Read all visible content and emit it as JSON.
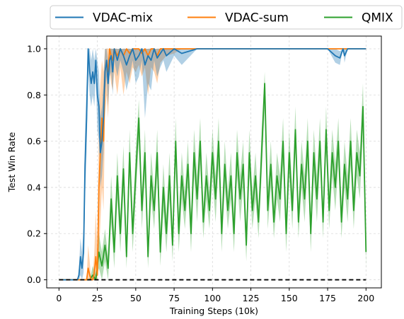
{
  "chart_data": {
    "type": "line",
    "xlabel": "Training Steps (10k)",
    "ylabel": "Test Win Rate",
    "xlim": [
      -8,
      210
    ],
    "ylim": [
      -0.035,
      1.055
    ],
    "xticks": [
      0,
      25,
      50,
      75,
      100,
      125,
      150,
      175,
      200
    ],
    "xtick_labels": [
      "0",
      "25",
      "50",
      "75",
      "100",
      "125",
      "150",
      "175",
      "200"
    ],
    "yticks": [
      0.0,
      0.2,
      0.4,
      0.6,
      0.8,
      1.0
    ],
    "ytick_labels": [
      "0.0",
      "0.2",
      "0.4",
      "0.6",
      "0.8",
      "1.0"
    ],
    "grid": true,
    "legend_position": "top",
    "baseline": {
      "y": 0.0,
      "style": "dashed",
      "color": "#000000"
    },
    "series": [
      {
        "name": "VDAC-mix",
        "color": "#1f77b4",
        "x": [
          0,
          12,
          13,
          14,
          15,
          16,
          17,
          18,
          19,
          20,
          21,
          22,
          23,
          24,
          25,
          26,
          27,
          28,
          29,
          30,
          31,
          32,
          33,
          34,
          35,
          36,
          38,
          40,
          42,
          44,
          46,
          48,
          50,
          52,
          54,
          56,
          58,
          60,
          62,
          64,
          66,
          68,
          70,
          75,
          80,
          90,
          100,
          120,
          140,
          160,
          175,
          180,
          183,
          185,
          186,
          188,
          190,
          200
        ],
        "values": [
          0,
          0,
          0.02,
          0.1,
          0.05,
          0.12,
          0.5,
          0.7,
          1.0,
          0.9,
          0.85,
          0.9,
          0.85,
          0.95,
          0.8,
          0.75,
          0.55,
          0.6,
          0.7,
          0.9,
          0.95,
          0.85,
          0.95,
          0.97,
          0.9,
          1.0,
          0.95,
          1.0,
          0.97,
          0.93,
          0.97,
          1.0,
          0.95,
          0.97,
          1.0,
          0.93,
          0.97,
          0.95,
          1.0,
          0.96,
          0.98,
          1.0,
          0.97,
          1.0,
          0.98,
          1.0,
          1.0,
          1.0,
          1.0,
          1.0,
          1.0,
          0.97,
          0.96,
          1.0,
          0.97,
          1.0,
          1.0,
          1.0
        ],
        "lower": [
          0,
          0,
          0,
          0.02,
          0.0,
          0.03,
          0.35,
          0.55,
          0.9,
          0.8,
          0.75,
          0.8,
          0.75,
          0.88,
          0.65,
          0.6,
          0.4,
          0.45,
          0.55,
          0.8,
          0.88,
          0.75,
          0.88,
          0.9,
          0.8,
          0.95,
          0.88,
          0.95,
          0.9,
          0.82,
          0.88,
          0.95,
          0.85,
          0.88,
          0.95,
          0.7,
          0.85,
          0.82,
          0.95,
          0.88,
          0.92,
          0.95,
          0.9,
          0.97,
          0.93,
          1.0,
          1.0,
          1.0,
          1.0,
          1.0,
          1.0,
          0.94,
          0.93,
          1.0,
          0.94,
          1.0,
          1.0,
          1.0
        ],
        "upper": [
          0,
          0,
          0.05,
          0.18,
          0.12,
          0.22,
          0.65,
          0.85,
          1.0,
          1.0,
          0.95,
          1.0,
          0.95,
          1.0,
          0.95,
          0.9,
          0.7,
          0.75,
          0.85,
          1.0,
          1.0,
          0.95,
          1.0,
          1.0,
          1.0,
          1.0,
          1.0,
          1.0,
          1.0,
          1.0,
          1.0,
          1.0,
          1.0,
          1.0,
          1.0,
          1.0,
          1.0,
          1.0,
          1.0,
          1.0,
          1.0,
          1.0,
          1.0,
          1.0,
          1.0,
          1.0,
          1.0,
          1.0,
          1.0,
          1.0,
          1.0,
          1.0,
          0.99,
          1.0,
          1.0,
          1.0,
          1.0,
          1.0
        ]
      },
      {
        "name": "VDAC-sum",
        "color": "#ff7f0e",
        "x": [
          0,
          18,
          19,
          20,
          21,
          22,
          23,
          24,
          25,
          26,
          27,
          28,
          29,
          30,
          31,
          32,
          33,
          34,
          35,
          36,
          38,
          40,
          42,
          44,
          46,
          48,
          50,
          52,
          54,
          56,
          58,
          60,
          62,
          64,
          66,
          70,
          75,
          80,
          100,
          150,
          200
        ],
        "values": [
          0,
          0,
          0.05,
          0.02,
          0.0,
          0.0,
          0.03,
          0.1,
          0.02,
          0.4,
          0.55,
          0.7,
          0.6,
          0.9,
          0.95,
          0.9,
          1.0,
          0.97,
          0.95,
          1.0,
          0.97,
          1.0,
          0.97,
          1.0,
          0.98,
          1.0,
          1.0,
          1.0,
          0.98,
          1.0,
          0.97,
          1.0,
          1.0,
          0.97,
          1.0,
          1.0,
          1.0,
          1.0,
          1.0,
          1.0,
          1.0
        ],
        "lower": [
          0,
          0,
          0.0,
          0.0,
          0.0,
          0.0,
          0.0,
          0.0,
          0.0,
          0.1,
          0.25,
          0.4,
          0.3,
          0.7,
          0.8,
          0.7,
          0.9,
          0.85,
          0.82,
          0.9,
          0.8,
          0.92,
          0.8,
          0.9,
          0.85,
          0.92,
          0.9,
          0.93,
          0.88,
          0.92,
          0.8,
          0.92,
          0.9,
          0.85,
          0.94,
          0.97,
          0.98,
          1.0,
          1.0,
          1.0,
          1.0
        ],
        "upper": [
          0,
          0,
          0.15,
          0.08,
          0.0,
          0.02,
          0.12,
          0.3,
          0.12,
          0.7,
          0.85,
          0.95,
          0.9,
          1.0,
          1.0,
          1.0,
          1.0,
          1.0,
          1.0,
          1.0,
          1.0,
          1.0,
          1.0,
          1.0,
          1.0,
          1.0,
          1.0,
          1.0,
          1.0,
          1.0,
          1.0,
          1.0,
          1.0,
          1.0,
          1.0,
          1.0,
          1.0,
          1.0,
          1.0,
          1.0,
          1.0
        ]
      },
      {
        "name": "QMIX",
        "color": "#2ca02c",
        "x": [
          0,
          20,
          22,
          24,
          26,
          28,
          30,
          32,
          34,
          36,
          38,
          40,
          42,
          44,
          46,
          48,
          50,
          52,
          54,
          56,
          58,
          60,
          62,
          64,
          66,
          68,
          70,
          72,
          74,
          76,
          78,
          80,
          82,
          84,
          86,
          88,
          90,
          92,
          94,
          96,
          98,
          100,
          102,
          104,
          106,
          108,
          110,
          112,
          114,
          116,
          118,
          120,
          122,
          124,
          126,
          128,
          130,
          132,
          134,
          136,
          138,
          140,
          142,
          144,
          146,
          148,
          150,
          152,
          154,
          156,
          158,
          160,
          162,
          164,
          166,
          168,
          170,
          172,
          174,
          176,
          178,
          180,
          182,
          184,
          186,
          188,
          190,
          192,
          194,
          196,
          198,
          200
        ],
        "values": [
          0.0,
          0.0,
          0.02,
          0.0,
          0.12,
          0.06,
          0.15,
          0.05,
          0.35,
          0.12,
          0.45,
          0.2,
          0.48,
          0.1,
          0.55,
          0.2,
          0.45,
          0.7,
          0.3,
          0.55,
          0.1,
          0.45,
          0.3,
          0.55,
          0.12,
          0.4,
          0.2,
          0.45,
          0.15,
          0.6,
          0.2,
          0.45,
          0.3,
          0.5,
          0.2,
          0.55,
          0.35,
          0.6,
          0.25,
          0.45,
          0.3,
          0.55,
          0.35,
          0.6,
          0.2,
          0.5,
          0.3,
          0.45,
          0.2,
          0.55,
          0.35,
          0.5,
          0.15,
          0.55,
          0.3,
          0.45,
          0.25,
          0.55,
          0.85,
          0.3,
          0.5,
          0.25,
          0.45,
          0.35,
          0.6,
          0.2,
          0.55,
          0.3,
          0.65,
          0.25,
          0.5,
          0.35,
          0.6,
          0.2,
          0.55,
          0.35,
          0.6,
          0.25,
          0.65,
          0.3,
          0.55,
          0.4,
          0.6,
          0.25,
          0.5,
          0.35,
          0.6,
          0.3,
          0.55,
          0.45,
          0.75,
          0.12
        ],
        "lower": [
          0.0,
          0.0,
          0.0,
          0.0,
          0.05,
          0.0,
          0.08,
          0.0,
          0.25,
          0.05,
          0.35,
          0.12,
          0.38,
          0.05,
          0.45,
          0.12,
          0.35,
          0.6,
          0.22,
          0.45,
          0.05,
          0.35,
          0.22,
          0.45,
          0.06,
          0.3,
          0.12,
          0.35,
          0.08,
          0.5,
          0.12,
          0.35,
          0.22,
          0.4,
          0.12,
          0.45,
          0.25,
          0.5,
          0.18,
          0.35,
          0.22,
          0.45,
          0.25,
          0.5,
          0.12,
          0.4,
          0.22,
          0.35,
          0.12,
          0.45,
          0.25,
          0.4,
          0.08,
          0.45,
          0.22,
          0.35,
          0.18,
          0.45,
          0.75,
          0.22,
          0.4,
          0.18,
          0.35,
          0.25,
          0.5,
          0.12,
          0.45,
          0.22,
          0.55,
          0.18,
          0.4,
          0.25,
          0.5,
          0.12,
          0.45,
          0.25,
          0.5,
          0.18,
          0.55,
          0.22,
          0.45,
          0.3,
          0.5,
          0.18,
          0.4,
          0.25,
          0.5,
          0.22,
          0.45,
          0.35,
          0.65,
          0.05
        ],
        "upper": [
          0.0,
          0.0,
          0.06,
          0.02,
          0.2,
          0.12,
          0.22,
          0.1,
          0.45,
          0.2,
          0.55,
          0.28,
          0.58,
          0.16,
          0.65,
          0.28,
          0.55,
          0.78,
          0.38,
          0.65,
          0.16,
          0.55,
          0.38,
          0.65,
          0.2,
          0.5,
          0.28,
          0.55,
          0.22,
          0.7,
          0.28,
          0.55,
          0.38,
          0.6,
          0.28,
          0.65,
          0.45,
          0.7,
          0.32,
          0.55,
          0.38,
          0.65,
          0.45,
          0.7,
          0.28,
          0.6,
          0.38,
          0.55,
          0.28,
          0.65,
          0.45,
          0.6,
          0.22,
          0.65,
          0.38,
          0.55,
          0.32,
          0.65,
          0.9,
          0.38,
          0.6,
          0.32,
          0.55,
          0.45,
          0.7,
          0.28,
          0.65,
          0.38,
          0.75,
          0.32,
          0.6,
          0.45,
          0.7,
          0.28,
          0.65,
          0.45,
          0.7,
          0.32,
          0.75,
          0.38,
          0.65,
          0.5,
          0.7,
          0.32,
          0.6,
          0.45,
          0.7,
          0.38,
          0.65,
          0.55,
          0.85,
          0.2
        ]
      }
    ]
  }
}
